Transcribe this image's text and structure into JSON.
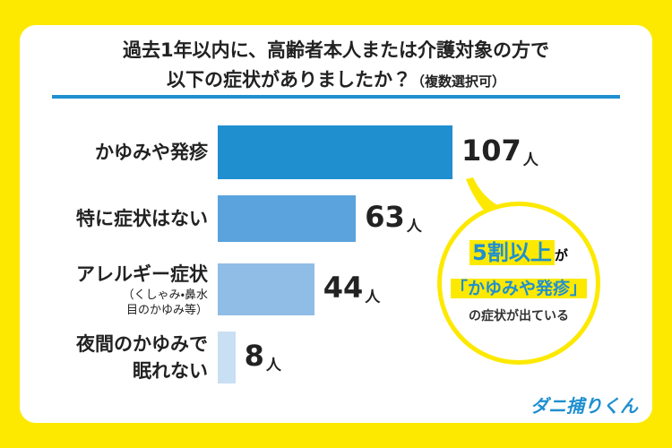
{
  "chart_data": {
    "type": "bar",
    "orientation": "horizontal",
    "title": "過去1年以内に、高齢者本人または介護対象の方で",
    "title_line2": "以下の症状がありましたか？",
    "title_note": "（複数選択可）",
    "categories": [
      "かゆみや発疹",
      "特に症状はない",
      "アレルギー症状",
      "夜間のかゆみで眠れない"
    ],
    "category_notes": [
      null,
      null,
      [
        "（くしゃみ・鼻水",
        "目のかゆみ等）"
      ],
      null
    ],
    "values": [
      107,
      63,
      44,
      8
    ],
    "unit": "人",
    "colors": [
      "#1f8fd0",
      "#5aa3dc",
      "#8fbde6",
      "#c9dff3"
    ]
  },
  "callout": {
    "highlight": "5割以上",
    "text1": "が",
    "quote": "「かゆみや発疹」",
    "text2": "の症状が出ている"
  },
  "logo": "ダニ捕りくん"
}
